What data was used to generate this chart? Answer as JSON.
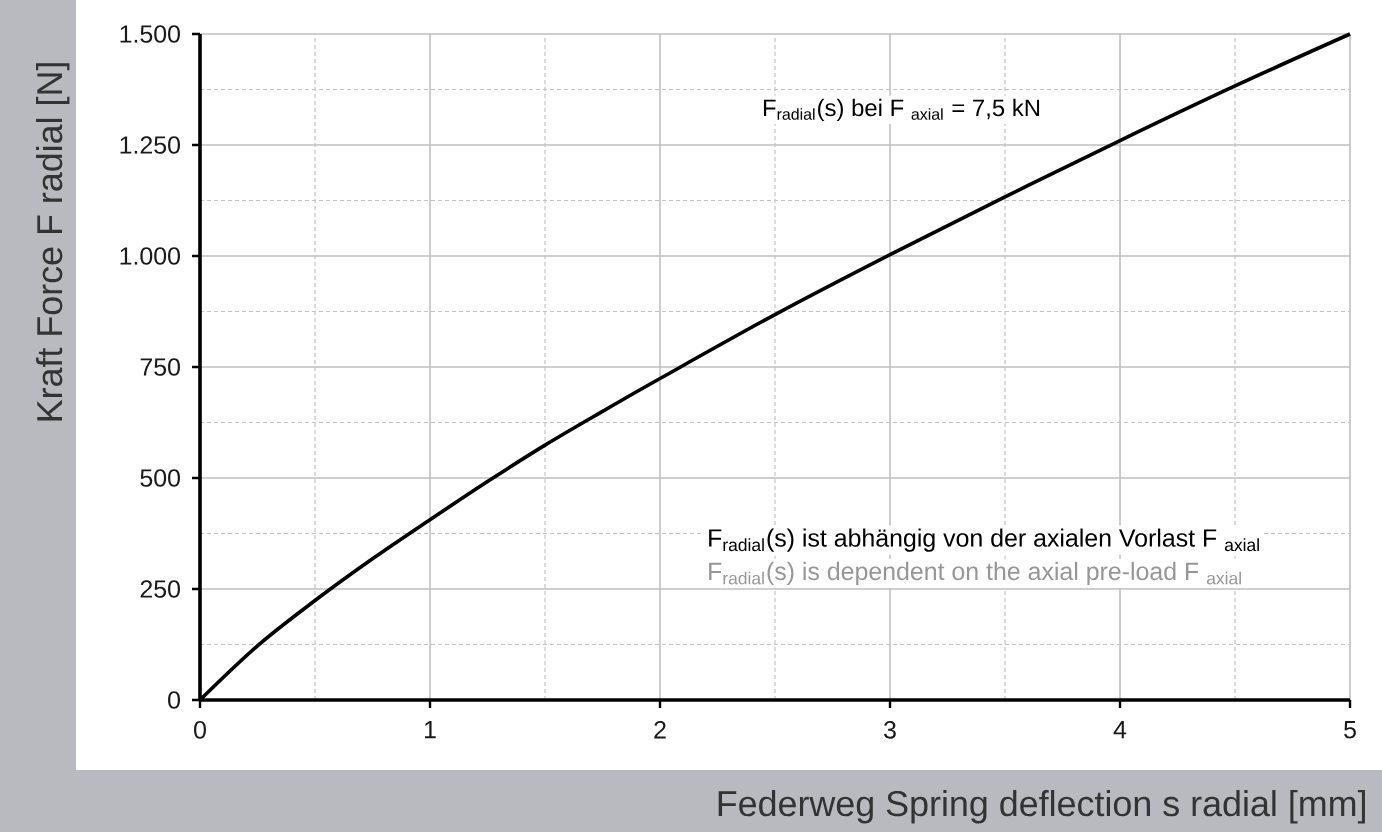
{
  "chart_data": {
    "type": "line",
    "xlabel": "Federweg Spring deflection s radial [mm]",
    "ylabel": "Kraft Force F radial [N]",
    "x": [
      0,
      0.25,
      0.5,
      0.75,
      1,
      1.25,
      1.5,
      1.75,
      2,
      2.5,
      3,
      3.5,
      4,
      4.5,
      5
    ],
    "series": [
      {
        "name": "F$_{radial}$(s) bei F $_{axial}$ = 7,5 kN",
        "color": "#000000",
        "values": [
          0,
          122,
          224,
          318,
          406,
          492,
          574,
          650,
          724,
          868,
          1003,
          1133,
          1260,
          1383,
          1500
        ]
      }
    ],
    "xlim": [
      0,
      5
    ],
    "ylim": [
      0,
      1500
    ],
    "xticks": [
      0,
      {
        "value": 0.5,
        "label": null
      },
      1,
      {
        "value": 1.5,
        "label": null
      },
      2,
      {
        "value": 2.5,
        "label": null
      },
      3,
      {
        "value": 3.5,
        "label": null
      },
      4,
      {
        "value": 4.5,
        "label": null
      },
      5
    ],
    "yticks": [
      0,
      {
        "value": 125,
        "label": null
      },
      250,
      {
        "value": 375,
        "label": null
      },
      500,
      {
        "value": 625,
        "label": null
      },
      750,
      {
        "value": 875,
        "label": null
      },
      {
        "value": 1000,
        "label": "1.000"
      },
      {
        "value": 1125,
        "label": null
      },
      {
        "value": 1250,
        "label": "1.250"
      },
      {
        "value": 1375,
        "label": null
      },
      {
        "value": 1500,
        "label": "1.500"
      }
    ],
    "grid": true,
    "line_style": "solid",
    "annotations": [
      "F$_{radial}$(s) ist abhängig von der axialen Vorlast F $_{axial}$",
      "F$_{radial}$(s) is dependent on the axial pre-load F $_{axial}$"
    ]
  }
}
